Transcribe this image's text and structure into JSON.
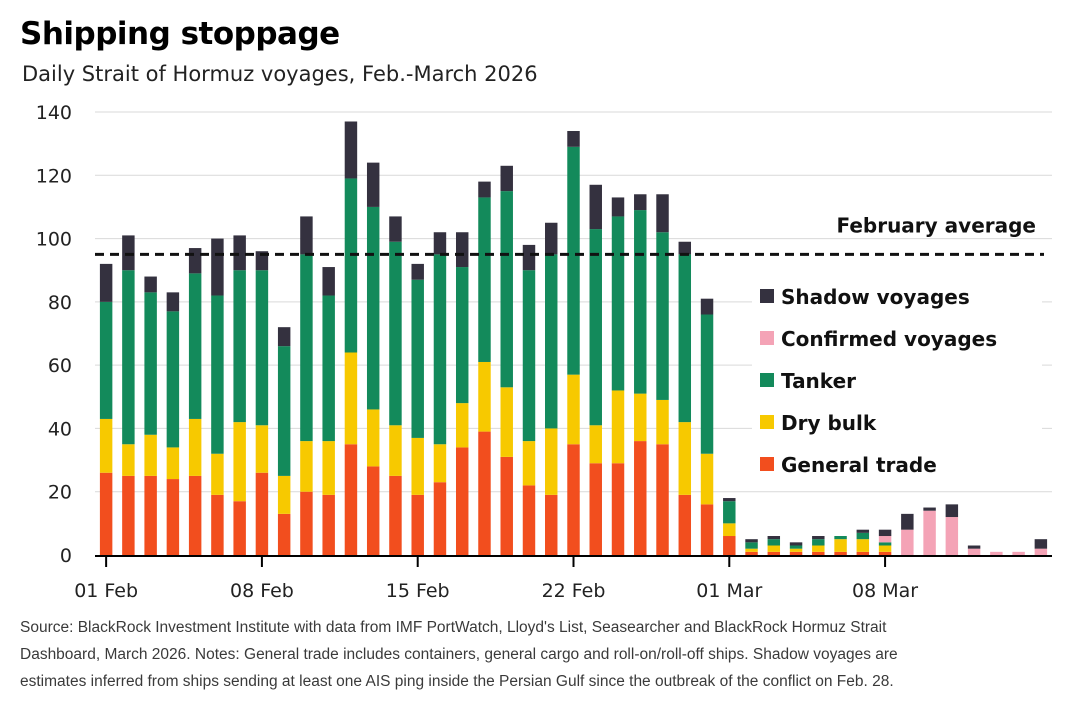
{
  "chart_data": {
    "type": "bar",
    "stacked": true,
    "title": "Shipping stoppage",
    "subtitle": "Daily Strait of Hormuz voyages, Feb.-March 2026",
    "ylim": [
      0,
      140
    ],
    "yticks": [
      0,
      20,
      40,
      60,
      80,
      100,
      120,
      140
    ],
    "xticks": [
      {
        "label": "01 Feb",
        "index": 0
      },
      {
        "label": "08 Feb",
        "index": 7
      },
      {
        "label": "15 Feb",
        "index": 14
      },
      {
        "label": "22 Feb",
        "index": 21
      },
      {
        "label": "01 Mar",
        "index": 28
      },
      {
        "label": "08 Mar",
        "index": 35
      }
    ],
    "grid": true,
    "legend_position": "right",
    "reference_line": {
      "label": "February average",
      "value": 95
    },
    "colors": {
      "General trade": "#f24e1e",
      "Dry bulk": "#f7c900",
      "Tanker": "#138a5b",
      "Confirmed voyages": "#f4a3b6",
      "Shadow voyages": "#34313f"
    },
    "legend": [
      "Shadow voyages",
      "Confirmed voyages",
      "Tanker",
      "Dry bulk",
      "General trade"
    ],
    "categories": [
      "01 Feb",
      "02 Feb",
      "03 Feb",
      "04 Feb",
      "05 Feb",
      "06 Feb",
      "07 Feb",
      "08 Feb",
      "09 Feb",
      "10 Feb",
      "11 Feb",
      "12 Feb",
      "13 Feb",
      "14 Feb",
      "15 Feb",
      "16 Feb",
      "17 Feb",
      "18 Feb",
      "19 Feb",
      "20 Feb",
      "21 Feb",
      "22 Feb",
      "23 Feb",
      "24 Feb",
      "25 Feb",
      "26 Feb",
      "27 Feb",
      "28 Feb",
      "01 Mar",
      "02 Mar",
      "03 Mar",
      "04 Mar",
      "05 Mar",
      "06 Mar",
      "07 Mar",
      "08 Mar",
      "09 Mar",
      "10 Mar",
      "11 Mar",
      "12 Mar",
      "13 Mar",
      "14 Mar",
      "15 Mar"
    ],
    "series": [
      {
        "name": "General trade",
        "values": [
          26,
          25,
          25,
          24,
          25,
          19,
          17,
          26,
          13,
          20,
          19,
          35,
          28,
          25,
          19,
          23,
          34,
          39,
          31,
          22,
          19,
          35,
          29,
          29,
          36,
          35,
          19,
          16,
          6,
          1,
          1,
          1,
          1,
          1,
          1,
          1,
          0,
          0,
          0,
          0,
          0,
          0,
          0
        ]
      },
      {
        "name": "Dry bulk",
        "values": [
          17,
          10,
          13,
          10,
          18,
          13,
          25,
          15,
          12,
          16,
          17,
          29,
          18,
          16,
          18,
          12,
          14,
          22,
          22,
          14,
          21,
          22,
          12,
          23,
          15,
          14,
          23,
          16,
          4,
          1,
          2,
          1,
          2,
          4,
          4,
          2,
          0,
          0,
          0,
          0,
          0,
          0,
          0
        ]
      },
      {
        "name": "Tanker",
        "values": [
          37,
          55,
          45,
          43,
          46,
          50,
          48,
          49,
          41,
          59,
          46,
          55,
          64,
          58,
          50,
          60,
          43,
          52,
          62,
          54,
          55,
          72,
          62,
          55,
          58,
          53,
          53,
          44,
          7,
          2,
          2,
          1,
          2,
          1,
          2,
          1,
          0,
          0,
          0,
          0,
          0,
          0,
          0
        ]
      },
      {
        "name": "Confirmed voyages",
        "values": [
          0,
          0,
          0,
          0,
          0,
          0,
          0,
          0,
          0,
          0,
          0,
          0,
          0,
          0,
          0,
          0,
          0,
          0,
          0,
          0,
          0,
          0,
          0,
          0,
          0,
          0,
          0,
          0,
          0,
          0,
          0,
          0,
          0,
          0,
          0,
          2,
          8,
          14,
          12,
          2,
          1,
          1,
          2
        ]
      },
      {
        "name": "Shadow voyages",
        "values": [
          12,
          11,
          5,
          6,
          8,
          18,
          11,
          6,
          6,
          12,
          9,
          18,
          14,
          8,
          5,
          7,
          11,
          5,
          8,
          8,
          10,
          5,
          14,
          6,
          5,
          12,
          4,
          5,
          1,
          1,
          1,
          1,
          1,
          0,
          1,
          2,
          5,
          1,
          4,
          1,
          0,
          0,
          3
        ]
      }
    ]
  },
  "source": {
    "line1": "Source: BlackRock Investment Institute with data from IMF PortWatch, Lloyd's List, Seasearcher and BlackRock Hormuz Strait",
    "line2": "Dashboard, March 2026. Notes: General trade includes containers, general cargo and roll-on/roll-off ships. Shadow voyages are",
    "line3": "estimates inferred from ships sending at least one AIS ping inside the Persian Gulf since the outbreak of the conflict on Feb. 28."
  }
}
